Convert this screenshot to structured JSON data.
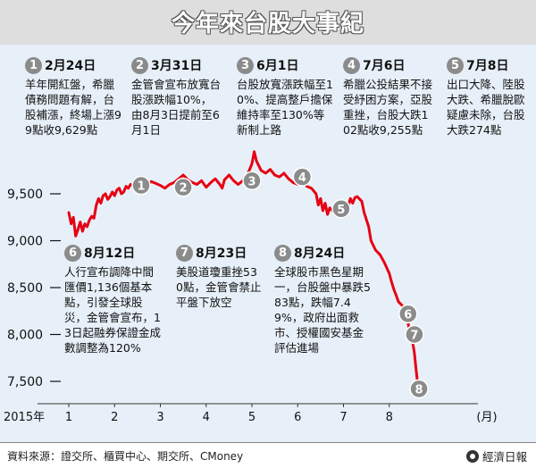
{
  "title": "今年來台股大事紀",
  "footer": {
    "source": "資料來源：證交所、櫃買中心、期交所、CMoney",
    "brand": "經濟日報"
  },
  "chart_data": {
    "type": "line",
    "title": "今年來台股大事紀",
    "year_label": "2015年",
    "x_unit": "(月)",
    "x_ticks": [
      "1",
      "2",
      "3",
      "4",
      "5",
      "6",
      "7",
      "8"
    ],
    "y_ticks": [
      "9,500",
      "9,000",
      "8,500",
      "8,000",
      "7,500"
    ],
    "y_tick_values": [
      9500,
      9000,
      8500,
      8000,
      7500
    ],
    "ylim": [
      7350,
      9900
    ],
    "xlim": [
      1,
      9.1
    ],
    "grid": false,
    "line_color": "#e60012",
    "series": [
      {
        "values": [
          [
            1.0,
            9300
          ],
          [
            1.05,
            9180
          ],
          [
            1.1,
            9250
          ],
          [
            1.15,
            9050
          ],
          [
            1.2,
            9120
          ],
          [
            1.25,
            9200
          ],
          [
            1.3,
            9100
          ],
          [
            1.35,
            9180
          ],
          [
            1.4,
            9150
          ],
          [
            1.45,
            9220
          ],
          [
            1.5,
            9260
          ],
          [
            1.55,
            9240
          ],
          [
            1.6,
            9380
          ],
          [
            1.65,
            9450
          ],
          [
            1.7,
            9400
          ],
          [
            1.75,
            9480
          ],
          [
            1.8,
            9500
          ],
          [
            1.85,
            9440
          ],
          [
            1.9,
            9470
          ],
          [
            1.95,
            9520
          ],
          [
            2.0,
            9480
          ],
          [
            2.05,
            9540
          ],
          [
            2.1,
            9560
          ],
          [
            2.15,
            9500
          ],
          [
            2.2,
            9520
          ],
          [
            2.25,
            9580
          ],
          [
            2.3,
            9560
          ],
          [
            2.35,
            9600
          ],
          [
            2.4,
            9590
          ],
          [
            2.5,
            9610
          ],
          [
            2.6,
            9560
          ],
          [
            2.7,
            9590
          ],
          [
            2.8,
            9630
          ],
          [
            2.9,
            9610
          ],
          [
            3.0,
            9590
          ],
          [
            3.1,
            9560
          ],
          [
            3.2,
            9600
          ],
          [
            3.3,
            9620
          ],
          [
            3.4,
            9660
          ],
          [
            3.5,
            9700
          ],
          [
            3.6,
            9650
          ],
          [
            3.7,
            9620
          ],
          [
            3.8,
            9600
          ],
          [
            3.9,
            9640
          ],
          [
            4.0,
            9570
          ],
          [
            4.1,
            9620
          ],
          [
            4.2,
            9660
          ],
          [
            4.3,
            9600
          ],
          [
            4.35,
            9560
          ],
          [
            4.4,
            9650
          ],
          [
            4.5,
            9700
          ],
          [
            4.6,
            9640
          ],
          [
            4.7,
            9600
          ],
          [
            4.8,
            9640
          ],
          [
            4.9,
            9700
          ],
          [
            5.0,
            9820
          ],
          [
            5.05,
            9950
          ],
          [
            5.1,
            9850
          ],
          [
            5.2,
            9750
          ],
          [
            5.3,
            9720
          ],
          [
            5.4,
            9760
          ],
          [
            5.5,
            9700
          ],
          [
            5.6,
            9680
          ],
          [
            5.7,
            9720
          ],
          [
            5.8,
            9660
          ],
          [
            5.9,
            9620
          ],
          [
            6.0,
            9600
          ],
          [
            6.1,
            9620
          ],
          [
            6.2,
            9580
          ],
          [
            6.3,
            9560
          ],
          [
            6.4,
            9500
          ],
          [
            6.45,
            9380
          ],
          [
            6.5,
            9450
          ],
          [
            6.55,
            9320
          ],
          [
            6.6,
            9400
          ],
          [
            6.65,
            9280
          ],
          [
            6.7,
            9350
          ],
          [
            6.8,
            9300
          ],
          [
            6.9,
            9320
          ],
          [
            7.0,
            9280
          ],
          [
            7.1,
            9360
          ],
          [
            7.15,
            9450
          ],
          [
            7.2,
            9400
          ],
          [
            7.25,
            9460
          ],
          [
            7.3,
            9470
          ],
          [
            7.4,
            9420
          ],
          [
            7.45,
            9300
          ],
          [
            7.55,
            9150
          ],
          [
            7.6,
            9000
          ],
          [
            7.7,
            8900
          ],
          [
            7.8,
            8850
          ],
          [
            7.9,
            8760
          ],
          [
            8.0,
            8650
          ],
          [
            8.05,
            8560
          ],
          [
            8.1,
            8480
          ],
          [
            8.15,
            8420
          ],
          [
            8.2,
            8350
          ],
          [
            8.3,
            8300
          ],
          [
            8.35,
            8250
          ],
          [
            8.4,
            8150
          ],
          [
            8.45,
            8020
          ],
          [
            8.47,
            8000
          ],
          [
            8.5,
            7950
          ],
          [
            8.55,
            7800
          ],
          [
            8.58,
            7650
          ],
          [
            8.62,
            7480
          ],
          [
            8.65,
            7410
          ]
        ]
      }
    ],
    "markers": [
      {
        "n": "1",
        "x": 2.58,
        "y": 9590
      },
      {
        "n": "2",
        "x": 3.5,
        "y": 9570
      },
      {
        "n": "3",
        "x": 5.0,
        "y": 9640
      },
      {
        "n": "4",
        "x": 6.1,
        "y": 9680
      },
      {
        "n": "5",
        "x": 6.95,
        "y": 9340
      },
      {
        "n": "6",
        "x": 8.41,
        "y": 8220
      },
      {
        "n": "7",
        "x": 8.55,
        "y": 8000
      },
      {
        "n": "8",
        "x": 8.65,
        "y": 7420
      }
    ]
  },
  "events": [
    {
      "n": "1",
      "date": "2月24日",
      "text": "羊年開紅盤，希臘債務問題有解，台股補漲，終場上漲99點收9,629點"
    },
    {
      "n": "2",
      "date": "3月31日",
      "text": "金管會宣布放寬台股漲跌幅10%，由8月3日提前至6月1日"
    },
    {
      "n": "3",
      "date": "6月1日",
      "text": "台股放寬漲跌幅至10%、提高整戶擔保維持率至130%等新制上路"
    },
    {
      "n": "4",
      "date": "7月6日",
      "text": "希臘公投結果不接受紓困方案，亞股重挫，台股大跌102點收9,255點"
    },
    {
      "n": "5",
      "date": "7月8日",
      "text": "出口大降、陸股大跌、希臘脫歐疑慮未除，台股大跌274點"
    },
    {
      "n": "6",
      "date": "8月12日",
      "text": "人行宣布調降中間匯價1,136個基本點，引發全球股災，金管會宣布，13日起融券保證金成數調整為120%"
    },
    {
      "n": "7",
      "date": "8月23日",
      "text": "美股道瓊重挫530點，金管會禁止平盤下放空"
    },
    {
      "n": "8",
      "date": "8月24日",
      "text": "全球股市黑色星期一，台股盤中暴跌583點，跌幅7.49%，政府出面救市、授權國安基金評估進場"
    }
  ]
}
